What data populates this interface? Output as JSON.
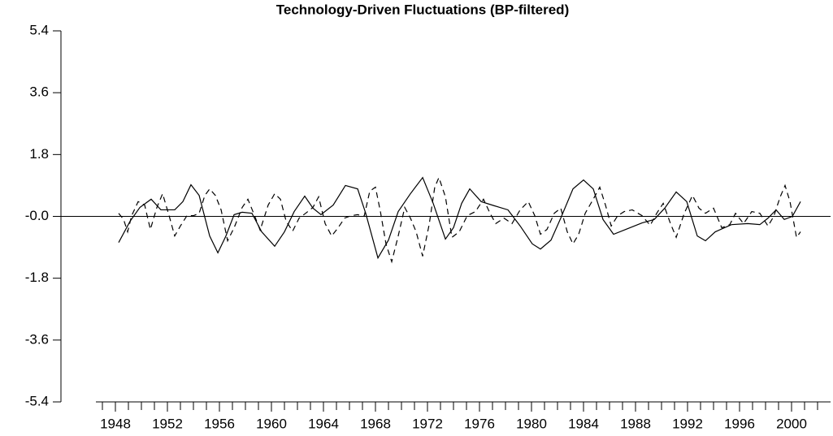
{
  "chart_data": {
    "type": "line",
    "title": "Technology-Driven Fluctuations (BP-filtered)",
    "xlim": [
      1946.5,
      2003
    ],
    "xticks": [
      1948,
      1952,
      1956,
      1960,
      1964,
      1968,
      1972,
      1976,
      1980,
      1984,
      1988,
      1992,
      1996,
      2000
    ],
    "xminorticks": [
      1947,
      1948,
      1949,
      1950,
      1951,
      1952,
      1953,
      1954,
      1955,
      1956,
      1957,
      1958,
      1959,
      1960,
      1961,
      1962,
      1963,
      1964,
      1965,
      1966,
      1967,
      1968,
      1969,
      1970,
      1971,
      1972,
      1973,
      1974,
      1975,
      1976,
      1977,
      1978,
      1979,
      1980,
      1981,
      1982,
      1983,
      1984,
      1985,
      1986,
      1987,
      1988,
      1989,
      1990,
      1991,
      1992,
      1993,
      1994,
      1995,
      1996,
      1997,
      1998,
      1999,
      2000,
      2001,
      2002
    ],
    "ylim": [
      -5.4,
      5.4
    ],
    "yticks": [
      5.4,
      3.6,
      1.8,
      {
        "value": 0,
        "label": "-0.0"
      },
      -1.8,
      -3.6,
      -5.4
    ],
    "zero_line": true,
    "series": [
      {
        "color": "#000000",
        "line_style": "solid",
        "x": [
          1948.25,
          1949.13,
          1949.88,
          1950.75,
          1951.5,
          1952.56,
          1953.19,
          1953.81,
          1954.44,
          1955.25,
          1955.88,
          1956.5,
          1957.13,
          1957.75,
          1958.5,
          1959.25,
          1960.25,
          1961,
          1961.75,
          1962.56,
          1963.19,
          1963.81,
          1964.75,
          1965.69,
          1966.63,
          1967.25,
          1968.19,
          1969,
          1969.75,
          1970.69,
          1971.63,
          1972.44,
          1973.38,
          1974,
          1974.63,
          1975.25,
          1976.13,
          1977.13,
          1978.19,
          1979.13,
          1980.06,
          1980.69,
          1981.5,
          1982.25,
          1983.19,
          1984,
          1984.75,
          1985.5,
          1986.31,
          1987.25,
          1988.5,
          1989.44,
          1990.25,
          1991.13,
          1991.94,
          1992.75,
          1993.38,
          1994.13,
          1995.38,
          1996.63,
          1997.56,
          1998.19,
          1998.81,
          1999.44,
          2000.06,
          2000.69
        ],
        "values": [
          -0.76,
          -0.14,
          0.26,
          0.5,
          0.19,
          0.19,
          0.43,
          0.92,
          0.61,
          -0.57,
          -1.06,
          -0.57,
          0.05,
          0.12,
          0.09,
          -0.45,
          -0.87,
          -0.45,
          0.14,
          0.59,
          0.24,
          0.05,
          0.33,
          0.9,
          0.8,
          0.09,
          -1.21,
          -0.69,
          0.14,
          0.66,
          1.13,
          0.38,
          -0.66,
          -0.33,
          0.38,
          0.8,
          0.43,
          0.31,
          0.19,
          -0.28,
          -0.8,
          -0.95,
          -0.69,
          -0.05,
          0.8,
          1.06,
          0.8,
          -0.09,
          -0.52,
          -0.38,
          -0.19,
          -0.09,
          0.24,
          0.71,
          0.43,
          -0.57,
          -0.71,
          -0.45,
          -0.24,
          -0.21,
          -0.24,
          -0.05,
          0.19,
          -0.09,
          0,
          0.43
        ]
      },
      {
        "color": "#000000",
        "line_style": "dashed",
        "x": [
          1948.25,
          1948.63,
          1948.94,
          1949.25,
          1949.75,
          1950.25,
          1950.69,
          1951.19,
          1951.63,
          1952.13,
          1952.56,
          1953,
          1953.5,
          1954,
          1954.44,
          1954.88,
          1955.25,
          1955.69,
          1956.13,
          1956.63,
          1957.13,
          1957.75,
          1958.19,
          1958.63,
          1959.13,
          1959.75,
          1960.25,
          1960.69,
          1961.13,
          1961.63,
          1962.13,
          1962.63,
          1963.19,
          1963.63,
          1964.13,
          1964.63,
          1965.13,
          1965.63,
          1966.13,
          1966.63,
          1967.13,
          1967.56,
          1968,
          1968.38,
          1968.81,
          1969.25,
          1969.75,
          1970.25,
          1970.69,
          1971.13,
          1971.63,
          1972.13,
          1972.56,
          1972.88,
          1973.38,
          1973.88,
          1974.44,
          1975.06,
          1975.69,
          1976.31,
          1976.81,
          1977.25,
          1977.88,
          1978.5,
          1979.13,
          1979.75,
          1980.25,
          1980.69,
          1981.19,
          1981.75,
          1982.25,
          1982.75,
          1983.19,
          1983.63,
          1984.13,
          1984.75,
          1985.25,
          1985.69,
          1986.13,
          1986.63,
          1987.13,
          1987.75,
          1988.5,
          1989.13,
          1989.63,
          1990.13,
          1990.69,
          1991.13,
          1991.75,
          1992.38,
          1992.88,
          1993.38,
          1994,
          1994.63,
          1995.25,
          1995.69,
          1996.31,
          1996.94,
          1997.56,
          1998.19,
          1998.63,
          1999.13,
          1999.5,
          1999.88,
          2000.38,
          2000.69
        ],
        "values": [
          0.09,
          -0.09,
          -0.45,
          0.02,
          0.43,
          0.33,
          -0.38,
          0.26,
          0.66,
          0.02,
          -0.57,
          -0.28,
          0.02,
          0.02,
          0.09,
          0.61,
          0.8,
          0.61,
          0.19,
          -0.71,
          -0.33,
          0.26,
          0.5,
          0.09,
          -0.4,
          0.33,
          0.66,
          0.5,
          -0.14,
          -0.43,
          -0.05,
          0.09,
          0.26,
          0.57,
          -0.21,
          -0.57,
          -0.33,
          -0.05,
          0.02,
          0.05,
          0,
          0.73,
          0.85,
          0.14,
          -0.8,
          -1.32,
          -0.57,
          0.26,
          -0.05,
          -0.45,
          -1.16,
          -0.24,
          0.85,
          1.13,
          0.57,
          -0.61,
          -0.45,
          0.02,
          0.14,
          0.5,
          0.09,
          -0.21,
          -0.05,
          -0.21,
          0.19,
          0.43,
          0.02,
          -0.52,
          -0.38,
          0.09,
          0.24,
          -0.45,
          -0.8,
          -0.52,
          0.09,
          0.5,
          0.85,
          0.33,
          -0.28,
          0.02,
          0.14,
          0.19,
          0.02,
          -0.26,
          0.09,
          0.38,
          -0.21,
          -0.61,
          0.09,
          0.61,
          0.24,
          0.09,
          0.24,
          -0.33,
          -0.24,
          0.09,
          -0.21,
          0.14,
          0.09,
          -0.28,
          0,
          0.57,
          0.9,
          0.43,
          -0.61,
          -0.45
        ]
      }
    ]
  }
}
